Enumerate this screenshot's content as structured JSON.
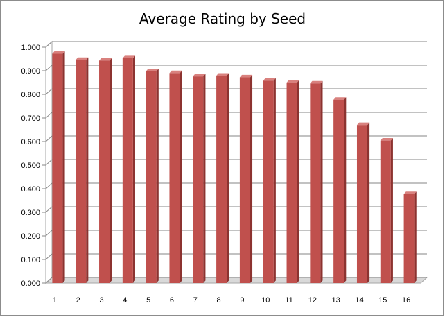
{
  "chart_data": {
    "type": "bar",
    "title": "Average Rating by Seed",
    "xlabel": "",
    "ylabel": "",
    "categories": [
      "1",
      "2",
      "3",
      "4",
      "5",
      "6",
      "7",
      "8",
      "9",
      "10",
      "11",
      "12",
      "13",
      "14",
      "15",
      "16"
    ],
    "values": [
      0.972,
      0.946,
      0.943,
      0.953,
      0.898,
      0.89,
      0.876,
      0.879,
      0.872,
      0.858,
      0.85,
      0.846,
      0.777,
      0.67,
      0.604,
      0.377
    ],
    "ylim": [
      0,
      1.0
    ],
    "yticks": [
      "0.000",
      "0.100",
      "0.200",
      "0.300",
      "0.400",
      "0.500",
      "0.600",
      "0.700",
      "0.800",
      "0.900",
      "1.000"
    ],
    "grid": true,
    "legend": "none",
    "colors": {
      "bar_front": "#c0504d",
      "bar_side": "#8c3330",
      "bar_top": "#d9817e",
      "grid": "#868686",
      "wall": "#ffffff",
      "floor": "#d9d9d9"
    }
  }
}
